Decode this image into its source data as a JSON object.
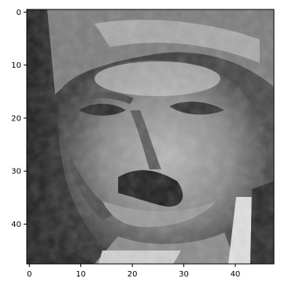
{
  "chart_data": {
    "type": "heatmap",
    "colormap": "gray",
    "image_shape": [
      48,
      48
    ],
    "x_ticks": [
      "0",
      "10",
      "20",
      "30",
      "40"
    ],
    "y_ticks": [
      "0",
      "10",
      "20",
      "30",
      "40"
    ],
    "xlim": [
      -0.5,
      47.5
    ],
    "ylim": [
      47.5,
      -0.5
    ],
    "grid": false
  }
}
